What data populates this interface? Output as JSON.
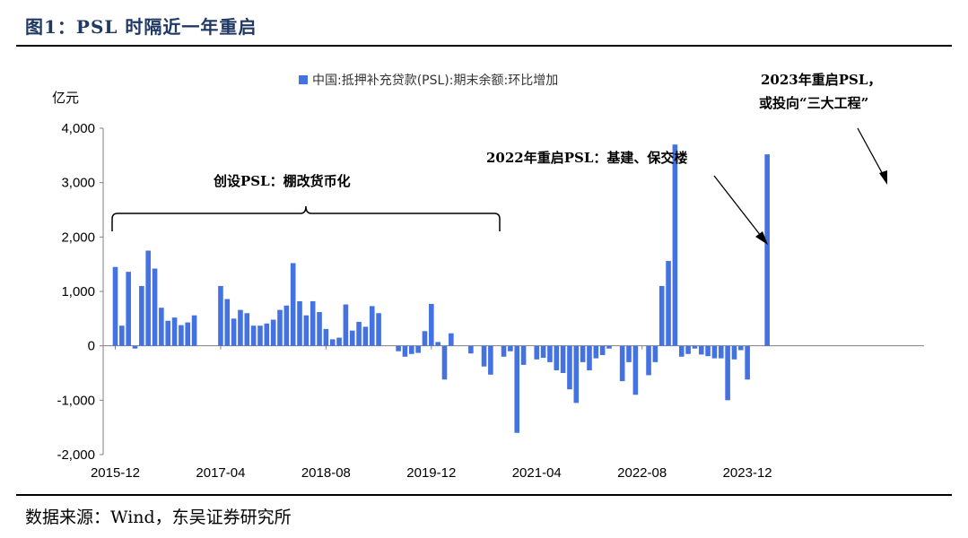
{
  "figure_title": "图1：PSL 时隔近一年重启",
  "source_text": "数据来源：Wind，东吴证券研究所",
  "chart_data": {
    "type": "bar",
    "y_unit_label": "亿元",
    "ylim": [
      -2000,
      4000
    ],
    "y_ticks": [
      4000,
      3000,
      2000,
      1000,
      0,
      -1000,
      -2000
    ],
    "y_tick_labels": [
      "4,000",
      "3,000",
      "2,000",
      "1,000",
      "0",
      "-1,000",
      "-2,000"
    ],
    "x_tick_labels": [
      "2015-12",
      "2017-04",
      "2018-08",
      "2019-12",
      "2021-04",
      "2022-08",
      "2023-12"
    ],
    "series": [
      {
        "name": "中国:抵押补充贷款(PSL):期末余额:环比增加",
        "color": "#4472e0",
        "values": [
          1450,
          370,
          1360,
          -50,
          1100,
          1750,
          1420,
          700,
          460,
          520,
          380,
          430,
          560,
          0,
          0,
          0,
          1100,
          860,
          500,
          660,
          600,
          370,
          370,
          410,
          480,
          660,
          740,
          1520,
          820,
          560,
          820,
          620,
          310,
          120,
          150,
          760,
          280,
          440,
          350,
          730,
          600,
          0,
          0,
          -100,
          -200,
          -150,
          -130,
          270,
          770,
          70,
          -620,
          230,
          0,
          0,
          -140,
          0,
          -380,
          -530,
          0,
          -200,
          -100,
          -1600,
          -350,
          0,
          -250,
          -220,
          -300,
          -450,
          -500,
          -800,
          -1050,
          -300,
          -450,
          -230,
          -170,
          -50,
          0,
          -650,
          -300,
          -900,
          0,
          -540,
          -300,
          1100,
          1560,
          3700,
          -200,
          -150,
          -50,
          -160,
          -190,
          -230,
          -230,
          -1000,
          -250,
          -80,
          -620,
          0,
          0,
          3520
        ]
      }
    ],
    "annotations": [
      "创设PSL：棚改货币化",
      "2022年重启PSL：基建、保交楼",
      "2023年重启PSL，",
      "或投向“三大工程”"
    ]
  }
}
